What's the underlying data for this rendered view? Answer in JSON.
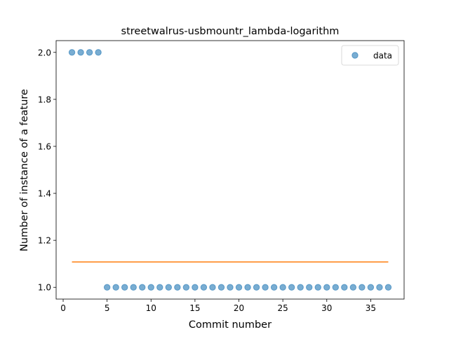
{
  "chart_data": {
    "type": "scatter",
    "title": "streetwalrus-usbmountr_lambda-logarithm",
    "xlabel": "Commit number",
    "ylabel": "Number of instance of a feature",
    "xlim": [
      -0.8,
      38.8
    ],
    "ylim": [
      0.95,
      2.05
    ],
    "xticks": [
      0,
      5,
      10,
      15,
      20,
      25,
      30,
      35
    ],
    "xtick_labels": [
      "0",
      "5",
      "10",
      "15",
      "20",
      "25",
      "30",
      "35"
    ],
    "yticks": [
      1.0,
      1.2,
      1.4,
      1.6,
      1.8,
      2.0
    ],
    "ytick_labels": [
      "1.0",
      "1.2",
      "1.4",
      "1.6",
      "1.8",
      "2.0"
    ],
    "grid": false,
    "legend": {
      "position": "top-right",
      "entries": [
        "data"
      ]
    },
    "series": [
      {
        "name": "data",
        "kind": "scatter",
        "color": "#1f77b4",
        "alpha": 0.6,
        "x": [
          1,
          2,
          3,
          4,
          5,
          6,
          7,
          8,
          9,
          10,
          11,
          12,
          13,
          14,
          15,
          16,
          17,
          18,
          19,
          20,
          21,
          22,
          23,
          24,
          25,
          26,
          27,
          28,
          29,
          30,
          31,
          32,
          33,
          34,
          35,
          36,
          37
        ],
        "y": [
          2,
          2,
          2,
          2,
          1,
          1,
          1,
          1,
          1,
          1,
          1,
          1,
          1,
          1,
          1,
          1,
          1,
          1,
          1,
          1,
          1,
          1,
          1,
          1,
          1,
          1,
          1,
          1,
          1,
          1,
          1,
          1,
          1,
          1,
          1,
          1,
          1
        ]
      },
      {
        "kind": "line",
        "color": "#ff7f0e",
        "x": [
          1,
          37
        ],
        "y": [
          1.108,
          1.108
        ]
      }
    ]
  }
}
